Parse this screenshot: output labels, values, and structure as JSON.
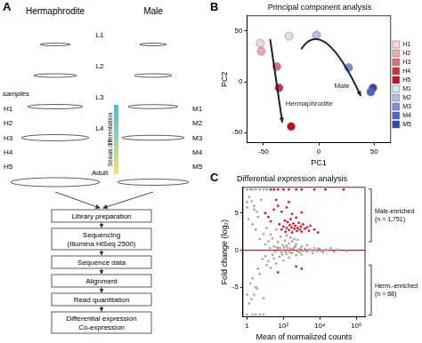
{
  "panel_a": {
    "label": "A",
    "columns": [
      "Hermaphrodite",
      "Male"
    ],
    "stages": [
      "L1",
      "L2",
      "L3",
      "L4",
      "Adult"
    ],
    "samples_heading": "samples",
    "samples": [
      [
        "H1",
        "H2",
        "H3",
        "H4",
        "H5"
      ],
      [
        "M1",
        "M2",
        "M3",
        "M4",
        "M5"
      ]
    ],
    "differentiation_label": "Sexual differentiation",
    "workflow": [
      [
        "Library preparation"
      ],
      [
        "Sequencing",
        "(Illumina HiSeq 2500)"
      ],
      [
        "Sequence data"
      ],
      [
        "Alignment"
      ],
      [
        "Read quantitation"
      ],
      [
        "Differential expression",
        "Co-expression"
      ]
    ]
  },
  "chart_data": [
    {
      "panel_label": "B",
      "type": "scatter",
      "title": "Principal component analysis",
      "x_label": "PC1",
      "y_label": "PC2",
      "xlim": [
        -65,
        65
      ],
      "ylim": [
        -60,
        65
      ],
      "xticks": [
        -50,
        0,
        50
      ],
      "yticks": [
        -50,
        0,
        50
      ],
      "grid": false,
      "legend": "right",
      "series": [
        {
          "name": "H1",
          "color": "#f6d5db",
          "points": [
            [
              -53,
              38
            ]
          ]
        },
        {
          "name": "H2",
          "color": "#f0a9b5",
          "points": [
            [
              -52,
              30
            ]
          ]
        },
        {
          "name": "H3",
          "color": "#e6697b",
          "points": [
            [
              -38,
              15
            ]
          ]
        },
        {
          "name": "H4",
          "color": "#d92b3a",
          "points": [
            [
              -36,
              -6
            ]
          ]
        },
        {
          "name": "H5",
          "color": "#c40f1c",
          "points": [
            [
              -25,
              -44
            ]
          ]
        },
        {
          "name": "M1",
          "color": "#dbe0f3",
          "points": [
            [
              -27,
              45
            ]
          ]
        },
        {
          "name": "M2",
          "color": "#b3bde8",
          "points": [
            [
              -2,
              46
            ]
          ]
        },
        {
          "name": "M3",
          "color": "#7b8ed8",
          "points": [
            [
              27,
              14
            ]
          ]
        },
        {
          "name": "M4",
          "color": "#4b63c8",
          "points": [
            [
              47,
              -10
            ]
          ]
        },
        {
          "name": "M5",
          "color": "#2e48b4",
          "points": [
            [
              49,
              -6
            ]
          ]
        }
      ],
      "annotations": [
        "Hermaphrodite",
        "Male"
      ]
    },
    {
      "panel_label": "C",
      "type": "scatter",
      "title": "Differential expression analysis",
      "x_label": "Mean of normalized counts",
      "y_label": "Fold change (log₂)",
      "log": "x",
      "xlim": [
        0.6,
        3000000
      ],
      "ylim": [
        -9,
        8.5
      ],
      "xticks": [
        1,
        {
          "value": 100,
          "label": "10²"
        },
        {
          "value": 10000,
          "label": "10⁴"
        },
        {
          "value": 1000000,
          "label": "10⁶"
        }
      ],
      "yticks": [
        -5,
        0,
        5
      ],
      "grid": false,
      "reference_line": {
        "y": 0,
        "color": "#e8101e"
      },
      "series": [
        {
          "color": "#a6a6a6",
          "points": [
            [
              1,
              6.5
            ],
            [
              1,
              5.8
            ],
            [
              1,
              -6
            ],
            [
              1.2,
              4.2
            ],
            [
              1.5,
              -4.5
            ],
            [
              2,
              3.5
            ],
            [
              2,
              -3.8
            ],
            [
              2.5,
              5.5
            ],
            [
              3,
              -5
            ],
            [
              3,
              2.8
            ],
            [
              4,
              4.5
            ],
            [
              4,
              -2.5
            ],
            [
              5,
              1.5
            ],
            [
              5,
              -3.2
            ],
            [
              6,
              6.8
            ],
            [
              7,
              -1.2
            ],
            [
              8,
              2.2
            ],
            [
              8,
              -6.5
            ],
            [
              10,
              0.8
            ],
            [
              10,
              -0.8
            ],
            [
              12,
              3
            ],
            [
              12,
              -2
            ],
            [
              15,
              1.2
            ],
            [
              15,
              -1.5
            ],
            [
              18,
              0.3
            ],
            [
              20,
              2.1
            ],
            [
              20,
              -2.4
            ],
            [
              25,
              -0.6
            ],
            [
              25,
              1.6
            ],
            [
              30,
              0.5
            ],
            [
              30,
              -1.1
            ],
            [
              40,
              2.8
            ],
            [
              40,
              -1.8
            ],
            [
              50,
              0.2
            ],
            [
              50,
              1.1
            ],
            [
              60,
              -0.9
            ],
            [
              70,
              1.8
            ],
            [
              80,
              -0.3
            ],
            [
              90,
              0.7
            ],
            [
              100,
              0.1
            ],
            [
              100,
              -1.4
            ],
            [
              120,
              1.3
            ],
            [
              150,
              -0.5
            ],
            [
              150,
              0.6
            ],
            [
              200,
              0.9
            ],
            [
              200,
              -1
            ],
            [
              250,
              0.2
            ],
            [
              300,
              -0.4
            ],
            [
              300,
              1.2
            ],
            [
              400,
              0.4
            ],
            [
              500,
              -0.7
            ],
            [
              500,
              0.8
            ],
            [
              700,
              0.1
            ],
            [
              800,
              -0.3
            ],
            [
              1000,
              0.5
            ],
            [
              1000,
              -0.6
            ],
            [
              1500,
              0.2
            ],
            [
              2000,
              -0.2
            ],
            [
              2000,
              0.7
            ],
            [
              3000,
              0.1
            ],
            [
              4000,
              -0.4
            ],
            [
              5000,
              0.3
            ],
            [
              7000,
              -0.1
            ],
            [
              10000,
              0.2
            ],
            [
              15000,
              -0.3
            ],
            [
              20000,
              0.1
            ],
            [
              40000,
              0.3
            ],
            [
              60000,
              -0.2
            ],
            [
              100000,
              0.1
            ],
            [
              300000,
              -0.1
            ],
            [
              1,
              8.2
            ],
            [
              1.5,
              8.2
            ],
            [
              2,
              8.2
            ],
            [
              3,
              8.2
            ],
            [
              5,
              8.2
            ],
            [
              8,
              8.2
            ],
            [
              12,
              8.2
            ],
            [
              1,
              -8.7
            ],
            [
              2,
              -8.7
            ],
            [
              3,
              -8.7
            ],
            [
              5,
              -8.7
            ],
            [
              8,
              -8.7
            ],
            [
              1.3,
              7.2
            ],
            [
              1.8,
              6.6
            ],
            [
              2.4,
              6
            ],
            [
              3.5,
              5.2
            ],
            [
              1.3,
              -7.2
            ],
            [
              1.8,
              -6.6
            ],
            [
              2.4,
              -6
            ],
            [
              3.5,
              -5.2
            ],
            [
              35,
              -0.2
            ],
            [
              45,
              0.4
            ],
            [
              65,
              0.3
            ],
            [
              85,
              -0.6
            ],
            [
              110,
              0.4
            ],
            [
              130,
              -0.2
            ],
            [
              170,
              0.3
            ],
            [
              220,
              -0.3
            ],
            [
              350,
              0.2
            ],
            [
              450,
              0.5
            ],
            [
              600,
              -0.2
            ],
            [
              900,
              0.2
            ],
            [
              1200,
              -0.1
            ],
            [
              2500,
              0.1
            ],
            [
              6000,
              0
            ],
            [
              8000,
              0.2
            ],
            [
              12000,
              -0.1
            ],
            [
              25000,
              0
            ],
            [
              150,
              2
            ],
            [
              250,
              1.7
            ],
            [
              400,
              1.5
            ],
            [
              600,
              1.4
            ]
          ]
        },
        {
          "color": "#e8101e",
          "points": [
            [
              60,
              3.5
            ],
            [
              80,
              2.8
            ],
            [
              100,
              3.2
            ],
            [
              120,
              4
            ],
            [
              130,
              2.5
            ],
            [
              150,
              3
            ],
            [
              170,
              3.8
            ],
            [
              200,
              2.7
            ],
            [
              220,
              3.4
            ],
            [
              250,
              4.2
            ],
            [
              280,
              3.1
            ],
            [
              300,
              2.4
            ],
            [
              350,
              3.6
            ],
            [
              400,
              2.9
            ],
            [
              450,
              3.3
            ],
            [
              500,
              4.4
            ],
            [
              550,
              2.6
            ],
            [
              600,
              3
            ],
            [
              700,
              3.7
            ],
            [
              800,
              2.8
            ],
            [
              900,
              3.2
            ],
            [
              1000,
              2.5
            ],
            [
              1200,
              3.5
            ],
            [
              1500,
              2.9
            ],
            [
              2000,
              3.1
            ],
            [
              2500,
              2.6
            ],
            [
              3000,
              3.3
            ],
            [
              5000,
              2.8
            ],
            [
              8000,
              2.4
            ],
            [
              30,
              5.5
            ],
            [
              50,
              6
            ],
            [
              80,
              5.2
            ],
            [
              150,
              5.8
            ],
            [
              300,
              4.9
            ],
            [
              1000,
              5.1
            ],
            [
              40,
              6.8
            ],
            [
              200,
              6.5
            ],
            [
              20,
              8.2
            ],
            [
              30,
              8.2
            ],
            [
              50,
              8.2
            ],
            [
              100,
              8.2
            ],
            [
              200,
              8.2
            ],
            [
              500,
              8.2
            ],
            [
              1000,
              8.2
            ],
            [
              5000,
              8.2
            ],
            [
              20000,
              8.2
            ],
            [
              200000,
              8.2
            ],
            [
              500,
              -2.2
            ],
            [
              1000,
              -2.5
            ],
            [
              50,
              -3
            ],
            [
              15,
              4.5
            ],
            [
              10,
              5
            ],
            [
              20,
              3.9
            ]
          ]
        }
      ],
      "annotations": [
        [
          "Male-enriched",
          "(n = 1,751)"
        ],
        [
          "Herm.-enriched",
          "(n = 68)"
        ]
      ]
    }
  ]
}
